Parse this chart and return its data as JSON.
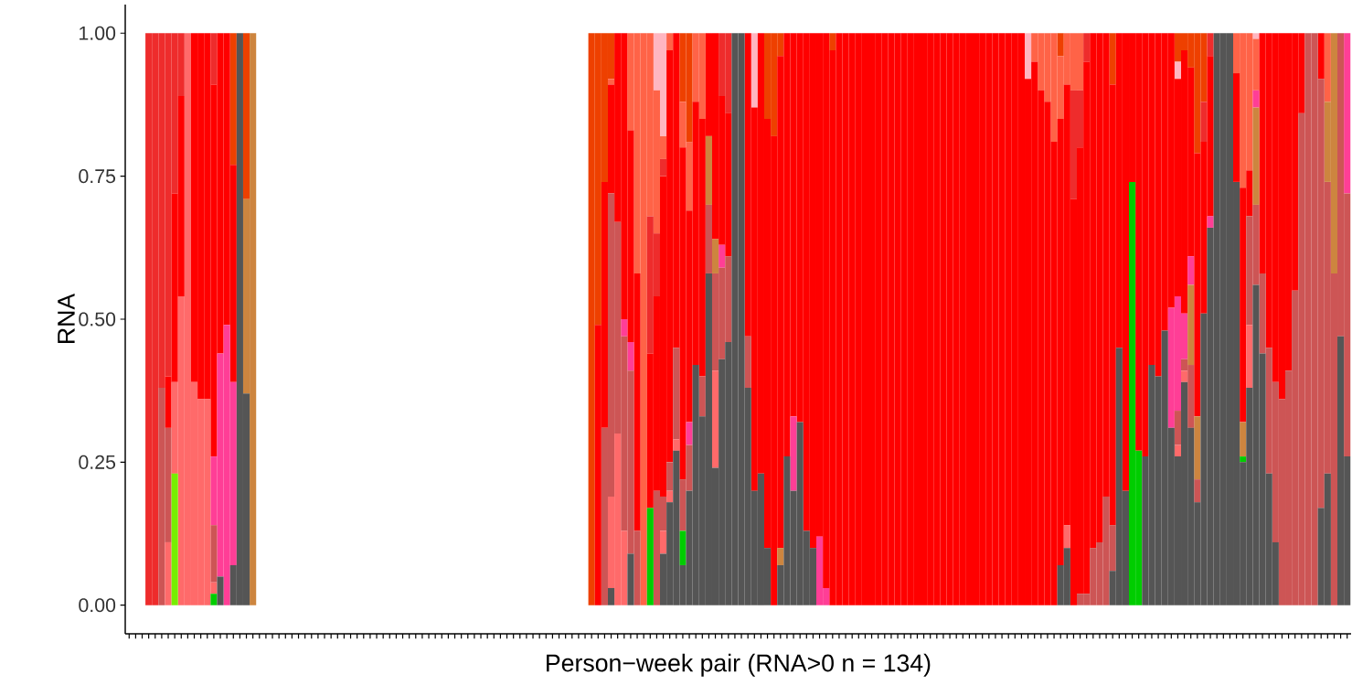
{
  "chart_data": {
    "type": "bar",
    "stacked": true,
    "ylabel": "RNA",
    "xlabel": "Person−week pair (RNA>0 n = 134)",
    "tick_labels": "y",
    "categories": [
      null,
      null,
      null,
      null,
      null,
      null,
      null,
      null,
      null,
      null,
      null,
      null,
      null,
      null,
      null,
      null,
      null,
      null,
      null,
      null,
      null,
      null,
      null,
      null,
      null,
      null,
      null,
      null,
      null,
      null,
      null,
      null,
      null,
      null,
      null,
      null,
      null,
      null,
      null,
      null,
      null,
      null,
      null,
      null,
      null,
      null,
      null,
      null,
      null,
      null,
      null,
      null,
      null,
      null,
      null,
      null,
      null,
      null,
      null,
      null,
      null,
      null,
      null,
      null,
      null,
      null,
      null,
      null,
      null,
      null,
      null,
      null,
      null,
      null,
      null,
      null,
      null,
      null,
      null,
      null,
      null,
      null,
      null,
      null,
      null,
      null,
      null,
      null,
      null,
      null,
      null,
      null,
      null,
      null,
      null,
      null,
      null,
      null,
      null,
      null,
      null,
      null,
      null,
      null,
      null,
      null,
      null,
      null,
      null,
      null,
      null,
      null,
      null,
      null,
      null,
      null,
      null,
      null,
      null,
      null,
      null,
      null,
      null,
      null,
      null,
      null,
      null,
      null,
      null,
      null,
      null,
      null,
      null,
      null,
      null,
      null,
      null,
      null,
      null,
      null,
      null,
      null,
      null,
      null,
      null,
      null,
      null,
      null,
      null,
      null,
      null,
      null,
      null,
      null,
      null,
      null,
      null,
      null,
      null,
      null,
      null,
      null,
      null,
      null,
      null,
      null,
      null,
      null,
      null,
      null,
      null,
      null,
      null,
      null,
      null,
      null,
      null,
      null,
      null,
      null,
      null,
      null,
      null,
      null,
      null,
      null,
      null,
      null
    ],
    "ylim": [
      -0.05,
      1.05
    ],
    "yticks": [
      {
        "value": 0,
        "label": "0.00"
      },
      {
        "value": 0.25,
        "label": "0.25"
      },
      {
        "value": 0.5,
        "label": "0.50"
      },
      {
        "value": 0.75,
        "label": "0.75"
      },
      {
        "value": 1,
        "label": "1.00"
      }
    ],
    "series": [
      {
        "color": "#555555",
        "values": [
          0,
          0,
          0,
          0,
          0,
          0,
          0,
          0,
          0,
          0,
          0,
          0,
          0,
          0,
          0.05,
          0,
          0.07,
          1,
          0.37,
          0,
          0,
          0,
          0,
          0,
          0,
          0,
          0,
          0,
          0,
          0,
          0,
          0,
          0,
          0,
          0,
          0,
          0,
          0,
          0,
          0,
          0,
          0,
          0,
          0,
          0,
          0,
          0,
          0,
          0,
          0,
          0,
          0,
          0,
          0,
          0,
          0,
          0,
          0,
          0,
          0,
          0,
          0,
          0,
          0,
          0,
          0,
          0,
          0,
          0,
          0,
          0,
          0,
          0,
          0,
          0.03,
          0,
          0,
          0.09,
          0,
          0,
          0,
          0,
          0.09,
          0.18,
          0.27,
          0.07,
          0.2,
          0.42,
          0.33,
          0.58,
          0.24,
          0.43,
          0.46,
          1,
          1,
          0.38,
          0.2,
          0.23,
          0.1,
          0,
          0.07,
          0.26,
          0.2,
          0.32,
          0.13,
          0.1,
          0,
          0,
          0,
          0,
          0,
          0,
          0,
          0,
          0,
          0,
          0,
          0,
          0,
          0,
          0,
          0,
          0,
          0,
          0,
          0,
          0,
          0,
          0,
          0,
          0,
          0,
          0,
          0,
          0,
          0,
          0,
          0,
          0,
          0,
          0,
          0,
          0,
          0.07,
          0.1,
          0,
          0,
          0,
          0,
          0,
          0,
          0.06,
          0.45,
          0.2,
          0,
          0,
          0.26,
          0.42,
          0.4,
          0.48,
          0.31,
          0.26,
          0.39,
          0.31,
          0.18,
          0.51,
          0.66,
          1,
          1,
          1,
          0.74,
          0.25,
          0.38,
          0.56,
          0.44,
          0.23,
          0.11,
          0,
          0,
          0,
          0,
          0,
          0,
          0.17,
          0.23,
          0,
          0.47,
          0.26
        ]
      },
      {
        "color": "#00cd00",
        "values": [
          0,
          0,
          0,
          0,
          0,
          0,
          0,
          0,
          0,
          0,
          0,
          0,
          0,
          0.02,
          0,
          0,
          0,
          0,
          0,
          0,
          0,
          0,
          0,
          0,
          0,
          0,
          0,
          0,
          0,
          0,
          0,
          0,
          0,
          0,
          0,
          0,
          0,
          0,
          0,
          0,
          0,
          0,
          0,
          0,
          0,
          0,
          0,
          0,
          0,
          0,
          0,
          0,
          0,
          0,
          0,
          0,
          0,
          0,
          0,
          0,
          0,
          0,
          0,
          0,
          0,
          0,
          0,
          0,
          0,
          0,
          0,
          0,
          0,
          0,
          0,
          0,
          0,
          0,
          0,
          0,
          0.17,
          0,
          0,
          0,
          0,
          0.06,
          0,
          0,
          0,
          0,
          0,
          0,
          0,
          0,
          0,
          0,
          0,
          0,
          0,
          0,
          0,
          0,
          0,
          0,
          0,
          0,
          0,
          0,
          0,
          0,
          0,
          0,
          0,
          0,
          0,
          0,
          0,
          0,
          0,
          0,
          0,
          0,
          0,
          0,
          0,
          0,
          0,
          0,
          0,
          0,
          0,
          0,
          0,
          0,
          0,
          0,
          0,
          0,
          0,
          0,
          0,
          0,
          0,
          0,
          0,
          0,
          0,
          0,
          0,
          0,
          0,
          0,
          0,
          0,
          0.74,
          0.27,
          0,
          0,
          0,
          0,
          0,
          0,
          0,
          0,
          0,
          0,
          0,
          0,
          0,
          0,
          0,
          0.01,
          0,
          0,
          0,
          0,
          0,
          0,
          0,
          0,
          0,
          0,
          0,
          0,
          0,
          0,
          0,
          0
        ]
      },
      {
        "color": "#76ee00",
        "values": [
          0,
          0,
          0,
          0,
          0,
          0,
          0,
          0.23,
          0,
          0,
          0,
          0,
          0,
          0,
          0,
          0,
          0,
          0,
          0,
          0,
          0,
          0,
          0,
          0,
          0,
          0,
          0,
          0,
          0,
          0,
          0,
          0,
          0,
          0,
          0,
          0,
          0,
          0,
          0,
          0,
          0,
          0,
          0,
          0,
          0,
          0,
          0,
          0,
          0,
          0,
          0,
          0,
          0,
          0,
          0,
          0,
          0,
          0,
          0,
          0,
          0,
          0,
          0,
          0,
          0,
          0,
          0,
          0,
          0,
          0,
          0,
          0,
          0,
          0,
          0,
          0,
          0,
          0,
          0,
          0,
          0,
          0,
          0,
          0,
          0,
          0,
          0,
          0,
          0,
          0,
          0,
          0,
          0,
          0,
          0,
          0,
          0,
          0,
          0,
          0,
          0,
          0,
          0,
          0,
          0,
          0,
          0,
          0,
          0,
          0,
          0,
          0,
          0,
          0,
          0,
          0,
          0,
          0,
          0,
          0,
          0,
          0,
          0,
          0,
          0,
          0,
          0,
          0,
          0,
          0,
          0,
          0,
          0,
          0,
          0,
          0,
          0,
          0,
          0,
          0,
          0,
          0,
          0,
          0,
          0,
          0,
          0,
          0,
          0,
          0,
          0,
          0,
          0,
          0,
          0,
          0,
          0,
          0,
          0,
          0,
          0,
          0,
          0,
          0,
          0,
          0,
          0,
          0,
          0,
          0,
          0,
          0,
          0,
          0,
          0,
          0,
          0,
          0,
          0,
          0,
          0,
          0,
          0,
          0,
          0,
          0,
          0,
          0
        ]
      },
      {
        "color": "#ff6a6a",
        "values": [
          0,
          0,
          0,
          0,
          0,
          0,
          0.11,
          0.16,
          0.54,
          1,
          0.39,
          0.36,
          0.36,
          0.02,
          0,
          0,
          0,
          0,
          0,
          0,
          0,
          0,
          0,
          0,
          0,
          0,
          0,
          0,
          0,
          0,
          0,
          0,
          0,
          0,
          0,
          0,
          0,
          0,
          0,
          0,
          0,
          0,
          0,
          0,
          0,
          0,
          0,
          0,
          0,
          0,
          0,
          0,
          0,
          0,
          0,
          0,
          0,
          0,
          0,
          0,
          0,
          0,
          0,
          0,
          0,
          0,
          0,
          0,
          0,
          0,
          0,
          0,
          0,
          0,
          0.16,
          0.3,
          0.13,
          0,
          0,
          0,
          0,
          0,
          0.04,
          0.02,
          0.02,
          0,
          0,
          0,
          0,
          0,
          0.17,
          0,
          0,
          0,
          0,
          0,
          0,
          0,
          0,
          0,
          0,
          0,
          0,
          0,
          0,
          0,
          0,
          0,
          0,
          0,
          0,
          0,
          0,
          0,
          0,
          0,
          0,
          0,
          0,
          0,
          0,
          0,
          0,
          0,
          0,
          0,
          0,
          0,
          0,
          0,
          0,
          0,
          0,
          0,
          0,
          0,
          0,
          0,
          0,
          0,
          0,
          0,
          0,
          0,
          0.04,
          0,
          0,
          0,
          0,
          0,
          0,
          0,
          0,
          0,
          0,
          0,
          0,
          0,
          0,
          0,
          0,
          0.02,
          0.02,
          0,
          0,
          0,
          0,
          0,
          0,
          0,
          0,
          0,
          0.11,
          0,
          0,
          0,
          0,
          0,
          0,
          0,
          0,
          0,
          0,
          0,
          0,
          0,
          0,
          0
        ]
      },
      {
        "color": "#cd5555",
        "values": [
          0,
          0,
          0,
          0,
          0,
          0.38,
          0.2,
          0,
          0,
          0,
          0,
          0,
          0,
          0.1,
          0,
          0,
          0,
          0,
          0,
          0,
          0,
          0,
          0,
          0,
          0,
          0,
          0,
          0,
          0,
          0,
          0,
          0,
          0,
          0,
          0,
          0,
          0,
          0,
          0,
          0,
          0,
          0,
          0,
          0,
          0,
          0,
          0,
          0,
          0,
          0,
          0,
          0,
          0,
          0,
          0,
          0,
          0,
          0,
          0,
          0,
          0,
          0,
          0,
          0,
          0,
          0,
          0,
          0,
          0,
          0,
          0,
          0,
          0,
          0.31,
          0.53,
          0.37,
          0.34,
          0.32,
          0.13,
          0,
          0,
          0.2,
          0.06,
          0.05,
          0.16,
          0.09,
          0.08,
          0,
          0.07,
          0.12,
          0.17,
          0.16,
          0.15,
          0,
          0,
          0.09,
          0,
          0,
          0,
          0,
          0,
          0,
          0,
          0,
          0,
          0,
          0,
          0,
          0,
          0,
          0,
          0,
          0,
          0,
          0,
          0,
          0,
          0,
          0,
          0,
          0,
          0,
          0,
          0,
          0,
          0,
          0,
          0,
          0,
          0,
          0,
          0,
          0,
          0,
          0,
          0,
          0,
          0,
          0,
          0,
          0,
          0,
          0,
          0,
          0,
          0,
          0.02,
          0.02,
          0.1,
          0.11,
          0.19,
          0.08,
          0,
          0,
          0,
          0,
          0,
          0,
          0,
          0,
          0,
          0.06,
          0.02,
          0.11,
          0.04,
          0,
          0,
          0,
          0,
          0,
          0,
          0,
          0.19,
          0.14,
          0.14,
          0.22,
          0.28,
          0.36,
          0.41,
          0.55,
          0.86,
          1,
          1,
          0.75,
          0.51,
          0.58,
          0.53,
          0.46
        ]
      },
      {
        "color": "#cd853f",
        "values": [
          0,
          0,
          0,
          0,
          0,
          0,
          0,
          0,
          0,
          0,
          0,
          0,
          0,
          0,
          0,
          0,
          0,
          0,
          0.34,
          1,
          0,
          0,
          0,
          0,
          0,
          0,
          0,
          0,
          0,
          0,
          0,
          0,
          0,
          0,
          0,
          0,
          0,
          0,
          0,
          0,
          0,
          0,
          0,
          0,
          0,
          0,
          0,
          0,
          0,
          0,
          0,
          0,
          0,
          0,
          0,
          0,
          0,
          0,
          0,
          0,
          0,
          0,
          0,
          0,
          0,
          0,
          0,
          0,
          0,
          0,
          0,
          0,
          0,
          0,
          0,
          0,
          0,
          0,
          0,
          0,
          0,
          0,
          0,
          0,
          0,
          0,
          0,
          0,
          0,
          0.12,
          0.06,
          0,
          0,
          0,
          0,
          0,
          0,
          0,
          0,
          0,
          0.03,
          0,
          0,
          0,
          0,
          0,
          0,
          0,
          0,
          0,
          0,
          0,
          0,
          0,
          0,
          0,
          0,
          0,
          0,
          0,
          0,
          0,
          0,
          0,
          0,
          0,
          0,
          0,
          0,
          0,
          0,
          0,
          0,
          0,
          0,
          0,
          0,
          0,
          0,
          0,
          0,
          0,
          0,
          0,
          0,
          0,
          0,
          0,
          0,
          0,
          0,
          0,
          0,
          0,
          0,
          0,
          0,
          0,
          0,
          0,
          0,
          0,
          0,
          0.14,
          0.11,
          0,
          0,
          0,
          0,
          0,
          0,
          0.06,
          0,
          0.17,
          0,
          0,
          0,
          0,
          0,
          0,
          0,
          0,
          0,
          0,
          0.14,
          0.42,
          0,
          0
        ]
      },
      {
        "color": "#ff3e96",
        "values": [
          0,
          0,
          0,
          0,
          0,
          0,
          0,
          0,
          0,
          0,
          0,
          0,
          0,
          0.12,
          0.39,
          0.49,
          0.32,
          0,
          0,
          0,
          0,
          0,
          0,
          0,
          0,
          0,
          0,
          0,
          0,
          0,
          0,
          0,
          0,
          0,
          0,
          0,
          0,
          0,
          0,
          0,
          0,
          0,
          0,
          0,
          0,
          0,
          0,
          0,
          0,
          0,
          0,
          0,
          0,
          0,
          0,
          0,
          0,
          0,
          0,
          0,
          0,
          0,
          0,
          0,
          0,
          0,
          0,
          0,
          0,
          0,
          0,
          0,
          0,
          0,
          0,
          0,
          0.03,
          0.05,
          0,
          0,
          0,
          0,
          0,
          0,
          0,
          0,
          0.04,
          0,
          0,
          0,
          0,
          0.04,
          0,
          0,
          0,
          0,
          0,
          0,
          0,
          0,
          0,
          0,
          0.13,
          0,
          0,
          0,
          0.12,
          0.03,
          0,
          0,
          0,
          0,
          0,
          0,
          0,
          0,
          0,
          0,
          0,
          0,
          0,
          0,
          0,
          0,
          0,
          0,
          0,
          0,
          0,
          0,
          0,
          0,
          0,
          0,
          0,
          0,
          0,
          0,
          0,
          0,
          0,
          0,
          0,
          0,
          0,
          0,
          0,
          0,
          0,
          0,
          0,
          0,
          0,
          0,
          0,
          0,
          0,
          0,
          0,
          0,
          0.21,
          0.2,
          0.08,
          0.05,
          0,
          0,
          0.02,
          0,
          0,
          0,
          0,
          0,
          0,
          0.03,
          0,
          0,
          0,
          0,
          0,
          0,
          0,
          0,
          0,
          0,
          0,
          0,
          0,
          0.28
        ]
      },
      {
        "color": "#ff0000",
        "values": [
          0,
          0,
          0,
          0,
          0,
          0,
          0.09,
          0.33,
          0.35,
          0,
          0.61,
          0.64,
          0.64,
          0.65,
          0.56,
          0.51,
          0.38,
          0,
          0,
          0,
          0,
          0,
          0,
          0,
          0,
          0,
          0,
          0,
          0,
          0,
          0,
          0,
          0,
          0,
          0,
          0,
          0,
          0,
          0,
          0,
          0,
          0,
          0,
          0,
          0,
          0,
          0,
          0,
          0,
          0,
          0,
          0,
          0,
          0,
          0,
          0,
          0,
          0,
          0,
          0,
          0,
          0,
          0,
          0,
          0,
          0,
          0,
          0,
          0,
          0,
          0,
          0,
          0.49,
          0.43,
          0.19,
          0.33,
          0.5,
          0.37,
          0.45,
          0,
          0.27,
          0.34,
          0.56,
          0.72,
          0.55,
          0.58,
          0.37,
          0.46,
          0.45,
          0.18,
          0.36,
          0.26,
          0.25,
          0,
          0,
          0.53,
          0.67,
          0.77,
          0.75,
          0.82,
          0.86,
          0.74,
          0.67,
          0.68,
          0.87,
          0.9,
          0.88,
          0.97,
          0.97,
          1,
          1,
          1,
          1,
          1,
          1,
          1,
          1,
          1,
          1,
          1,
          1,
          1,
          1,
          1,
          1,
          1,
          1,
          1,
          1,
          1,
          1,
          1,
          1,
          1,
          1,
          1,
          1,
          1,
          0.92,
          0.95,
          0.9,
          0.88,
          0.81,
          0.78,
          0.77,
          0.71,
          0.78,
          0.93,
          0.9,
          0.89,
          0.81,
          0.77,
          0.55,
          0.8,
          0.26,
          0.73,
          0.74,
          0.58,
          0.6,
          0.52,
          0.48,
          0.38,
          0.46,
          0.33,
          0.46,
          0.3,
          0.28,
          0,
          0,
          0,
          0.19,
          0.41,
          0.08,
          0,
          0.42,
          0.55,
          0.61,
          0.64,
          0.59,
          0.45,
          0.14,
          0,
          0,
          0.08,
          0,
          0,
          0,
          0
        ]
      },
      {
        "color": "#ee2c2c",
        "values": [
          0,
          0,
          0,
          1,
          1,
          0.62,
          0.6,
          0.28,
          0.11,
          0,
          0,
          0,
          0,
          0.09,
          0,
          0,
          0,
          0,
          0,
          0,
          0,
          0,
          0,
          0,
          0,
          0,
          0,
          0,
          0,
          0,
          0,
          0,
          0,
          0,
          0,
          0,
          0,
          0,
          0,
          0,
          0,
          0,
          0,
          0,
          0,
          0,
          0,
          0,
          0,
          0,
          0,
          0,
          0,
          0,
          0,
          0,
          0,
          0,
          0,
          0,
          0,
          0,
          0,
          0,
          0,
          0,
          0,
          0,
          0,
          0,
          0,
          0,
          0,
          0,
          0,
          0,
          0,
          0,
          0,
          0,
          0.24,
          0.11,
          0.03,
          0,
          0,
          0,
          0,
          0,
          0,
          0,
          0,
          0.11,
          0.14,
          0,
          0,
          0,
          0,
          0,
          0,
          0,
          0,
          0,
          0,
          0,
          0,
          0,
          0,
          0,
          0,
          0,
          0,
          0,
          0,
          0,
          0,
          0,
          0,
          0,
          0,
          0,
          0,
          0,
          0,
          0,
          0,
          0,
          0,
          0,
          0,
          0,
          0,
          0,
          0,
          0,
          0,
          0,
          0,
          0,
          0,
          0,
          0,
          0,
          0,
          0,
          0,
          0.19,
          0.1,
          0.05,
          0,
          0,
          0,
          0,
          0,
          0,
          0,
          0,
          0,
          0,
          0,
          0,
          0,
          0,
          0,
          0,
          0,
          0.07,
          0.04,
          0,
          0,
          0,
          0,
          0,
          0,
          0,
          0,
          0,
          0,
          0,
          0,
          0,
          0,
          0,
          0,
          0,
          0,
          0,
          0,
          0
        ]
      },
      {
        "color": "#ff6347",
        "values": [
          0,
          0,
          0,
          0,
          0,
          0,
          0,
          0,
          0,
          0,
          0,
          0,
          0,
          0,
          0,
          0,
          0,
          0,
          0,
          0,
          0,
          0,
          0,
          0,
          0,
          0,
          0,
          0,
          0,
          0,
          0,
          0,
          0,
          0,
          0,
          0,
          0,
          0,
          0,
          0,
          0,
          0,
          0,
          0,
          0,
          0,
          0,
          0,
          0,
          0,
          0,
          0,
          0,
          0,
          0,
          0,
          0,
          0,
          0,
          0,
          0,
          0,
          0,
          0,
          0,
          0,
          0,
          0,
          0,
          0,
          0,
          0,
          0,
          0,
          0.01,
          0,
          0,
          0.17,
          0.42,
          1,
          0.32,
          0.25,
          0.04,
          0.03,
          0,
          0.08,
          0.12,
          0.12,
          0.15,
          0,
          0,
          0,
          0,
          0,
          0,
          0,
          0,
          0,
          0,
          0,
          0,
          0,
          0,
          0,
          0,
          0,
          0,
          0,
          0,
          0,
          0,
          0,
          0,
          0,
          0,
          0,
          0,
          0,
          0,
          0,
          0,
          0,
          0,
          0,
          0,
          0,
          0,
          0,
          0,
          0,
          0,
          0,
          0,
          0,
          0,
          0,
          0,
          0,
          0,
          0.05,
          0.1,
          0.12,
          0.19,
          0.11,
          0.09,
          0.1,
          0.1,
          0,
          0,
          0,
          0,
          0,
          0,
          0,
          0,
          0,
          0,
          0,
          0,
          0,
          0,
          0,
          0,
          0,
          0,
          0,
          0,
          0,
          0,
          0,
          0.07,
          0.27,
          0.24,
          0.09,
          0,
          0,
          0,
          0,
          0,
          0,
          0,
          0,
          0,
          0,
          0.12,
          0,
          0,
          0
        ]
      },
      {
        "color": "#ffb6c1",
        "values": [
          0,
          0,
          0,
          0,
          0,
          0,
          0,
          0,
          0,
          0,
          0,
          0,
          0,
          0,
          0,
          0,
          0,
          0,
          0,
          0,
          0,
          0,
          0,
          0,
          0,
          0,
          0,
          0,
          0,
          0,
          0,
          0,
          0,
          0,
          0,
          0,
          0,
          0,
          0,
          0,
          0,
          0,
          0,
          0,
          0,
          0,
          0,
          0,
          0,
          0,
          0,
          0,
          0,
          0,
          0,
          0,
          0,
          0,
          0,
          0,
          0,
          0,
          0,
          0,
          0,
          0,
          0,
          0,
          0,
          0,
          0,
          0,
          0,
          0,
          0,
          0,
          0,
          0,
          0,
          0,
          0,
          0.1,
          0.18,
          0,
          0,
          0,
          0,
          0,
          0,
          0,
          0,
          0,
          0,
          0,
          0,
          0,
          0.13,
          0,
          0,
          0,
          0,
          0,
          0,
          0,
          0,
          0,
          0,
          0,
          0,
          0,
          0,
          0,
          0,
          0,
          0,
          0,
          0,
          0,
          0,
          0,
          0,
          0,
          0,
          0,
          0,
          0,
          0,
          0,
          0,
          0,
          0,
          0,
          0,
          0,
          0,
          0,
          0,
          0,
          0.08,
          0,
          0,
          0,
          0,
          0,
          0,
          0,
          0,
          0,
          0,
          0,
          0,
          0,
          0,
          0,
          0,
          0,
          0,
          0,
          0,
          0,
          0,
          0.03,
          0,
          0,
          0,
          0,
          0,
          0,
          0,
          0,
          0,
          0,
          0,
          0.01,
          0,
          0,
          0,
          0,
          0,
          0,
          0,
          0,
          0,
          0,
          0,
          0,
          0,
          0
        ]
      },
      {
        "color": "#ee4000",
        "values": [
          0,
          0,
          0,
          0,
          0,
          0,
          0,
          0,
          0,
          0,
          0,
          0,
          0,
          0,
          0,
          0,
          0.23,
          0,
          0.29,
          0,
          0,
          0,
          0,
          0,
          0,
          0,
          0,
          0,
          0,
          0,
          0,
          0,
          0,
          0,
          0,
          0,
          0,
          0,
          0,
          0,
          0,
          0,
          0,
          0,
          0,
          0,
          0,
          0,
          0,
          0,
          0,
          0,
          0,
          0,
          0,
          0,
          0,
          0,
          0,
          0,
          0,
          0,
          0,
          0,
          0,
          0,
          0,
          0,
          0,
          0,
          0,
          1,
          0.51,
          0.26,
          0.08,
          0,
          0,
          0,
          0,
          0,
          0,
          0,
          0,
          0,
          0,
          0.12,
          0.19,
          0,
          0,
          0,
          0,
          0,
          0,
          0,
          0,
          0,
          0,
          0,
          0.15,
          0.18,
          0.04,
          0,
          0,
          0,
          0,
          0,
          0,
          0,
          0.03,
          0,
          0,
          0,
          0,
          0,
          0,
          0,
          0,
          0,
          0,
          0,
          0,
          0,
          0,
          0,
          0,
          0,
          0,
          0,
          0,
          0,
          0,
          0,
          0,
          0,
          0,
          0,
          0,
          0,
          0,
          0,
          0,
          0,
          0,
          0.04,
          0,
          0,
          0,
          0,
          0,
          0,
          0,
          0.09,
          0,
          0,
          0,
          0,
          0,
          0,
          0,
          0,
          0,
          0.05,
          0.03,
          0.06,
          0.21,
          0.12,
          0,
          0,
          0,
          0,
          0,
          0,
          0,
          0,
          0,
          0,
          0,
          0,
          0,
          0,
          0,
          0,
          0,
          0,
          0,
          0,
          0,
          0
        ]
      }
    ]
  }
}
